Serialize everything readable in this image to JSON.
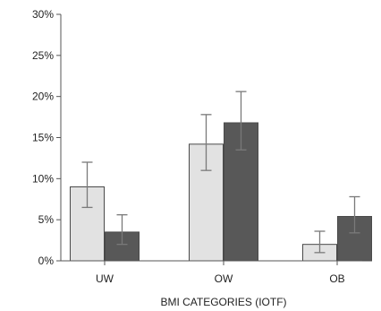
{
  "chart_data": {
    "type": "bar",
    "xlabel": "BMI CATEGORIES (IOTF)",
    "ylabel": "",
    "ylim": [
      0,
      30
    ],
    "yticks": [
      "0%",
      "5%",
      "10%",
      "15%",
      "20%",
      "25%",
      "30%"
    ],
    "categories": [
      "UW",
      "OW",
      "OB"
    ],
    "grid": false,
    "series": [
      {
        "color": "#e2e2e2",
        "values": [
          9.0,
          14.2,
          2.0
        ],
        "error_low": [
          6.5,
          11.0,
          1.0
        ],
        "error_high": [
          12.0,
          17.8,
          3.6
        ]
      },
      {
        "color": "#585858",
        "values": [
          3.5,
          16.8,
          5.4
        ],
        "error_low": [
          2.0,
          13.5,
          3.4
        ],
        "error_high": [
          5.6,
          20.6,
          7.8
        ]
      }
    ]
  }
}
